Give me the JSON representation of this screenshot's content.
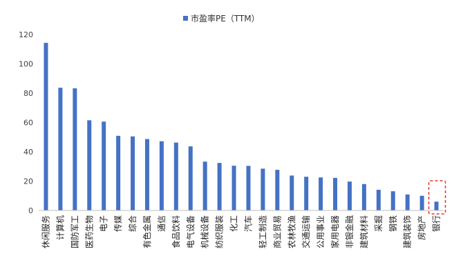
{
  "chart_data": {
    "type": "bar",
    "title": "",
    "xlabel": "",
    "ylabel": "",
    "ylim": [
      0,
      120
    ],
    "yticks": [
      0,
      20,
      40,
      60,
      80,
      100,
      120
    ],
    "grid": false,
    "legend_position": "top-center",
    "categories": [
      "休闲服务",
      "计算机",
      "国防军工",
      "医药生物",
      "电子",
      "传媒",
      "综合",
      "有色金属",
      "通信",
      "食品饮料",
      "电气设备",
      "机械设备",
      "纺织服装",
      "化工",
      "汽车",
      "轻工制造",
      "商业贸易",
      "农林牧渔",
      "交通运输",
      "公用事业",
      "家用电器",
      "非银金融",
      "建筑材料",
      "采掘",
      "钢铁",
      "建筑装饰",
      "房地产",
      "银行"
    ],
    "series": [
      {
        "name": "市盈率PE（TTM）",
        "color": "#4472C4",
        "values": [
          114.3,
          83.7,
          83.3,
          61.5,
          60.6,
          50.9,
          50.5,
          48.7,
          47.2,
          46.3,
          43.7,
          33.3,
          32.4,
          30.5,
          30.4,
          28.5,
          27.7,
          23.8,
          23.0,
          22.5,
          22.2,
          19.7,
          18.0,
          14.1,
          13.1,
          10.9,
          10.0,
          6.0
        ]
      }
    ],
    "highlight": {
      "category": "银行",
      "style": "dashed-box",
      "color": "#E8302A"
    }
  }
}
